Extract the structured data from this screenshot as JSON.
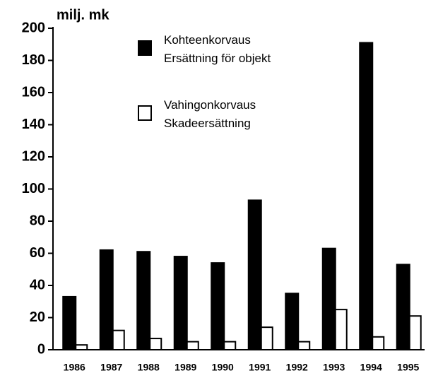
{
  "chart_data": {
    "type": "bar",
    "y_label": "milj. mk",
    "categories": [
      "1986",
      "1987",
      "1988",
      "1989",
      "1990",
      "1991",
      "1992",
      "1993",
      "1994",
      "1995"
    ],
    "series": [
      {
        "name": "Kohteenkorvaus\nErsättning för objekt",
        "color": "#000000",
        "values": [
          33,
          62,
          61,
          58,
          54,
          93,
          35,
          63,
          191,
          53
        ]
      },
      {
        "name": "Vahingonkorvaus\nSkadeersättning",
        "color": "#ffffff",
        "values": [
          3,
          12,
          7,
          5,
          5,
          14,
          5,
          25,
          8,
          21
        ]
      }
    ],
    "ylim": [
      0,
      200
    ],
    "yticks": [
      0,
      20,
      40,
      60,
      80,
      100,
      120,
      140,
      160,
      180,
      200
    ],
    "grid": false
  }
}
